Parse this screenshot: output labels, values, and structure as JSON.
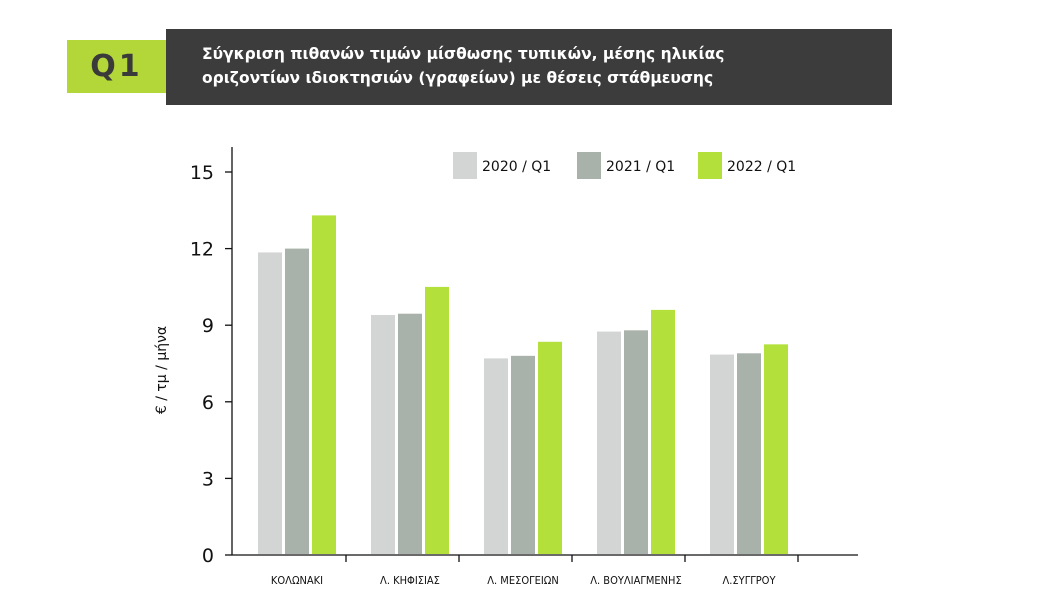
{
  "header": {
    "badge": "Q1",
    "title_line1": "Σύγκριση πιθανών τιμών μίσθωσης τυπικών, μέσης ηλικίας",
    "title_line2": "οριζοντίων ιδιοκτησιών (γραφείων) με θέσεις στάθμευσης"
  },
  "colors": {
    "badge": "#b3d739",
    "title_bar": "#3c3c3c"
  },
  "chart_data": {
    "type": "bar",
    "ylabel": "€ / τμ / μήνα",
    "ylim": [
      0,
      15
    ],
    "yticks": [
      0,
      3,
      6,
      9,
      12,
      15
    ],
    "grid": false,
    "legend_position": "top-right",
    "categories": [
      "ΚΟΛΩΝΑΚΙ",
      "Λ. ΚΗΦΙΣΙΑΣ",
      "Λ. ΜΕΣΟΓΕΙΩΝ",
      "Λ. ΒΟΥΛΙΑΓΜΕΝΗΣ",
      "Λ.ΣΥΓΓΡΟΥ"
    ],
    "series": [
      {
        "name": "2020 / Q1",
        "color": "#d3d5d4",
        "values": [
          11.85,
          9.4,
          7.7,
          8.75,
          7.85
        ]
      },
      {
        "name": "2021 / Q1",
        "color": "#a9b1ab",
        "values": [
          12.0,
          9.45,
          7.8,
          8.8,
          7.9
        ]
      },
      {
        "name": "2022 / Q1",
        "color": "#b3e03a",
        "values": [
          13.3,
          10.5,
          8.35,
          9.6,
          8.25
        ]
      }
    ]
  }
}
